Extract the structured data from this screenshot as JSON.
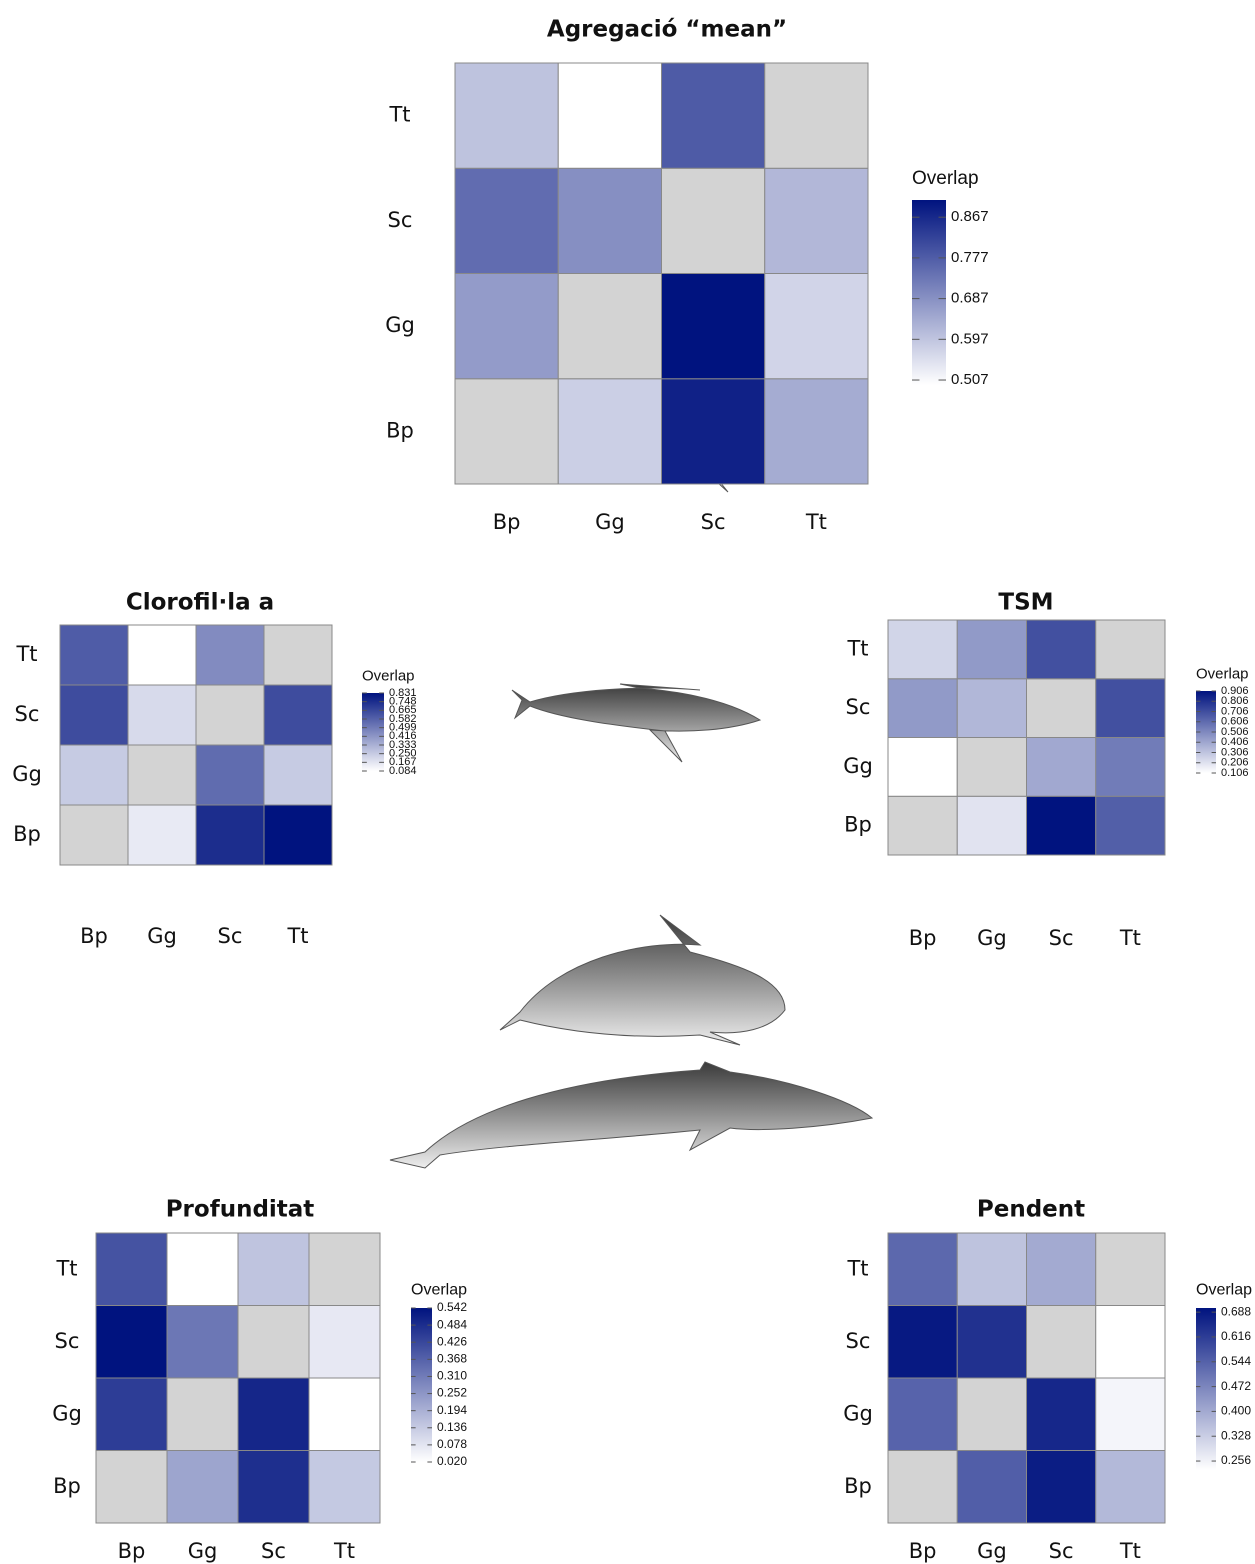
{
  "chart_data": [
    {
      "type": "heatmap",
      "title": "Agregació “mean”",
      "x": [
        "Bp",
        "Gg",
        "Sc",
        "Tt"
      ],
      "y": [
        "Bp",
        "Gg",
        "Sc",
        "Tt"
      ],
      "values": [
        [
          null,
          0.58,
          0.88,
          0.64
        ],
        [
          0.67,
          null,
          0.905,
          0.57
        ],
        [
          0.75,
          0.69,
          null,
          0.62
        ],
        [
          0.6,
          0.496,
          0.78,
          null
        ]
      ],
      "legend_title": "Overlap",
      "colorlim": [
        0.496,
        0.905
      ],
      "colorticks": [
        0.867,
        0.777,
        0.687,
        0.597,
        0.507
      ],
      "low_color": "#ffffff",
      "high_color": "#00137f",
      "na_color": "#d3d3d3"
    },
    {
      "type": "heatmap",
      "title": "Clorofil·la a",
      "x": [
        "Bp",
        "Gg",
        "Sc",
        "Tt"
      ],
      "y": [
        "Bp",
        "Gg",
        "Sc",
        "Tt"
      ],
      "values": [
        [
          null,
          0.15,
          0.75,
          0.831
        ],
        [
          0.25,
          null,
          0.55,
          0.25
        ],
        [
          0.65,
          0.2,
          null,
          0.65
        ],
        [
          0.6,
          0.084,
          0.45,
          null
        ]
      ],
      "legend_title": "Overlap",
      "colorlim": [
        0.084,
        0.831
      ],
      "colorticks": [
        0.831,
        0.748,
        0.665,
        0.582,
        0.499,
        0.416,
        0.333,
        {
          "value": 0.25,
          "label": "0.250"
        },
        0.167,
        0.084
      ],
      "low_color": "#ffffff",
      "high_color": "#00137f",
      "na_color": "#d3d3d3"
    },
    {
      "type": "heatmap",
      "title": "TSM",
      "x": [
        "Bp",
        "Gg",
        "Sc",
        "Tt"
      ],
      "y": [
        "Bp",
        "Gg",
        "Sc",
        "Tt"
      ],
      "values": [
        [
          null,
          0.2,
          0.906,
          0.65
        ],
        [
          0.106,
          null,
          0.4,
          0.55
        ],
        [
          0.45,
          0.35,
          null,
          0.7
        ],
        [
          0.25,
          0.45,
          0.7,
          null
        ]
      ],
      "legend_title": "Overlap",
      "colorlim": [
        0.106,
        0.906
      ],
      "colorticks": [
        0.906,
        0.806,
        0.706,
        0.606,
        0.506,
        0.406,
        0.306,
        0.206,
        0.106
      ],
      "low_color": "#ffffff",
      "high_color": "#00137f",
      "na_color": "#d3d3d3"
    },
    {
      "type": "heatmap",
      "title": "Profunditat",
      "x": [
        "Bp",
        "Gg",
        "Sc",
        "Tt"
      ],
      "y": [
        "Bp",
        "Gg",
        "Sc",
        "Tt"
      ],
      "values": [
        [
          null,
          0.22,
          0.48,
          0.14
        ],
        [
          0.45,
          null,
          0.5,
          0.02
        ],
        [
          0.542,
          0.32,
          null,
          0.07
        ],
        [
          0.4,
          0.02,
          0.15,
          null
        ]
      ],
      "legend_title": "Overlap",
      "colorlim": [
        0.02,
        0.542
      ],
      "colorticks": [
        0.542,
        0.484,
        0.426,
        0.368,
        {
          "value": 0.31,
          "label": "0.310"
        },
        0.252,
        0.194,
        0.136,
        0.078,
        {
          "value": 0.02,
          "label": "0.020"
        }
      ],
      "low_color": "#ffffff",
      "high_color": "#00137f",
      "na_color": "#d3d3d3"
    },
    {
      "type": "heatmap",
      "title": "Pendent",
      "x": [
        "Bp",
        "Gg",
        "Sc",
        "Tt"
      ],
      "y": [
        "Bp",
        "Gg",
        "Sc",
        "Tt"
      ],
      "values": [
        [
          null,
          0.55,
          0.68,
          0.37
        ],
        [
          0.54,
          null,
          0.66,
          0.25
        ],
        [
          0.688,
          0.64,
          null,
          0.23
        ],
        [
          0.53,
          0.35,
          0.4,
          null
        ]
      ],
      "legend_title": "Overlap",
      "colorlim": [
        0.23,
        0.7
      ],
      "colorticks": [
        0.688,
        0.616,
        0.544,
        0.472,
        {
          "value": 0.4,
          "label": "0.400"
        },
        0.328,
        0.256
      ],
      "low_color": "#ffffff",
      "high_color": "#00137f",
      "na_color": "#d3d3d3"
    }
  ]
}
